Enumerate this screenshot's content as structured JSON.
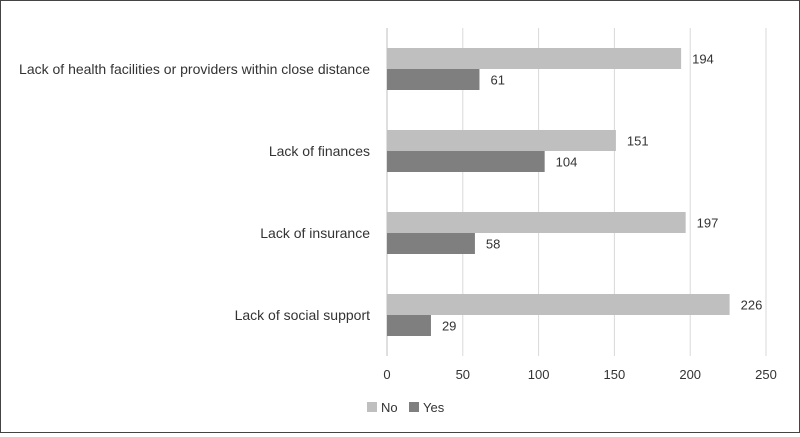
{
  "chart_data": {
    "type": "bar",
    "orientation": "horizontal",
    "title": "",
    "xlabel": "",
    "ylabel": "",
    "categories": [
      "Lack of health facilities or providers within close distance",
      "Lack of finances",
      "Lack of insurance",
      "Lack of social support"
    ],
    "series": [
      {
        "name": "No",
        "color": "#bfbfbf",
        "values": [
          194,
          151,
          197,
          226
        ]
      },
      {
        "name": "Yes",
        "color": "#7f7f7f",
        "values": [
          61,
          104,
          58,
          29
        ]
      }
    ],
    "xlim": [
      0,
      250
    ],
    "xticks": [
      0,
      50,
      100,
      150,
      200,
      250
    ],
    "grid": true,
    "data_labels": true,
    "legend": {
      "position": "bottom-left",
      "entries": [
        "No",
        "Yes"
      ]
    }
  }
}
